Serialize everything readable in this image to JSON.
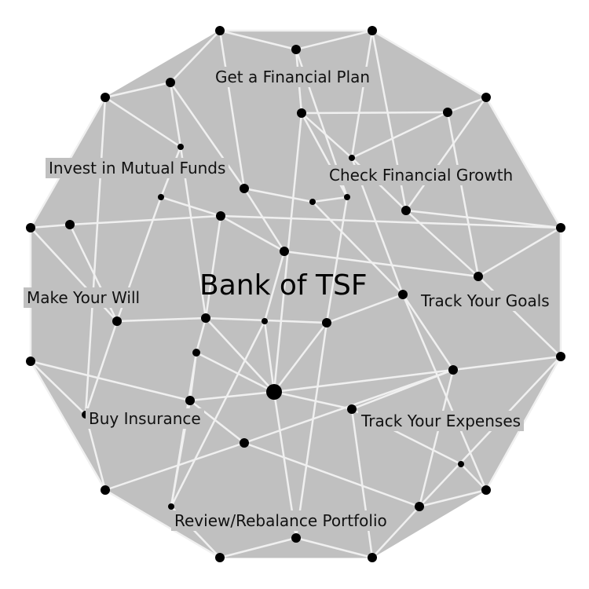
{
  "title": "Bank of TSF",
  "colors": {
    "shape_fill": "#c0c0c0",
    "edge": "#f0f0f0",
    "node": "#000000",
    "background": "#ffffff"
  },
  "menu": [
    {
      "id": "financial-plan",
      "label": "Get a Financial Plan"
    },
    {
      "id": "mutual-funds",
      "label": "Invest in Mutual Funds"
    },
    {
      "id": "financial-growth",
      "label": "Check Financial Growth"
    },
    {
      "id": "will",
      "label": "Make Your Will"
    },
    {
      "id": "goals",
      "label": "Track Your Goals"
    },
    {
      "id": "insurance",
      "label": "Buy Insurance"
    },
    {
      "id": "expenses",
      "label": "Track Your Expenses"
    },
    {
      "id": "portfolio",
      "label": "Review/Rebalance Portfolio"
    }
  ]
}
